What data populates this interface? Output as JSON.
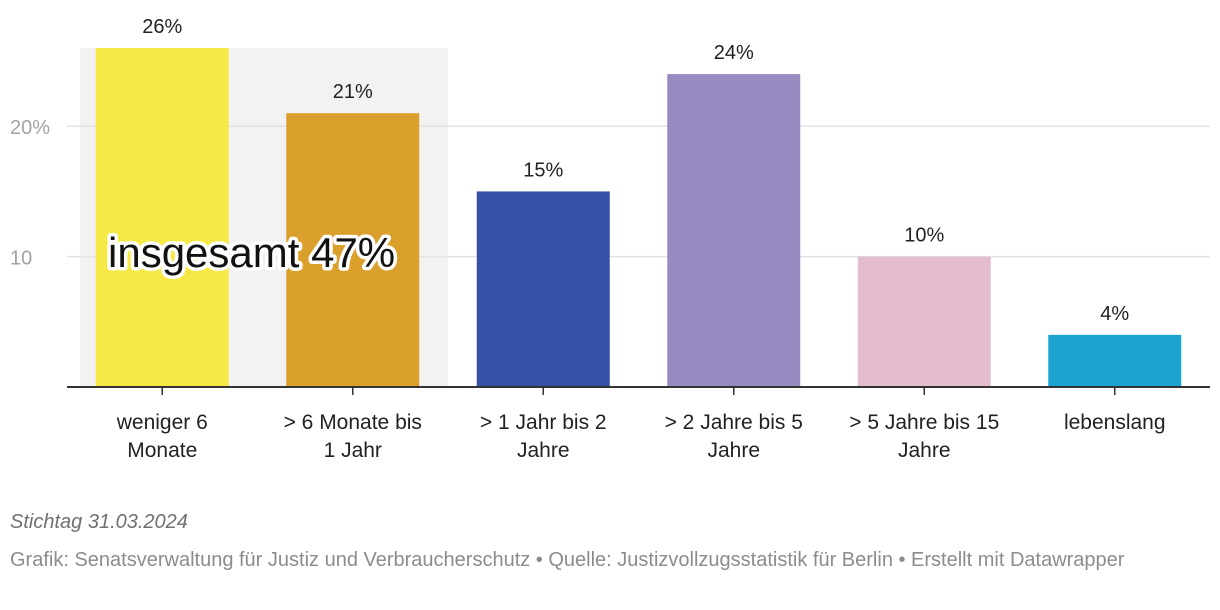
{
  "chart_data": {
    "type": "bar",
    "categories": [
      [
        "weniger 6",
        "Monate"
      ],
      [
        "> 6 Monate bis",
        "1 Jahr"
      ],
      [
        "> 1 Jahr bis 2",
        "Jahre"
      ],
      [
        "> 2 Jahre bis 5",
        "Jahre"
      ],
      [
        "> 5 Jahre bis 15",
        "Jahre"
      ],
      [
        "lebenslang"
      ]
    ],
    "values": [
      26,
      21,
      15,
      24,
      10,
      4
    ],
    "value_labels": [
      "26%",
      "21%",
      "15%",
      "24%",
      "10%",
      "4%"
    ],
    "colors": [
      "#f6e946",
      "#db9f2b",
      "#3451a5",
      "#998bc1",
      "#e4bccf",
      "#1ba4d1"
    ],
    "ylim": [
      0,
      26
    ],
    "y_ticks": [
      10,
      20
    ],
    "y_tick_labels": [
      "10",
      "20%"
    ],
    "grid": true,
    "highlight": {
      "categories": [
        0,
        1
      ],
      "label": "insgesamt 47%",
      "color": "#f2f2f2"
    },
    "title": "",
    "xlabel": "",
    "ylabel": ""
  },
  "footer": {
    "note": "Stichtag 31.03.2024",
    "source": "Grafik: Senatsverwaltung für Justiz und Verbraucherschutz • Quelle: Justizvollzugsstatistik für Berlin • Erstellt mit Datawrapper"
  }
}
